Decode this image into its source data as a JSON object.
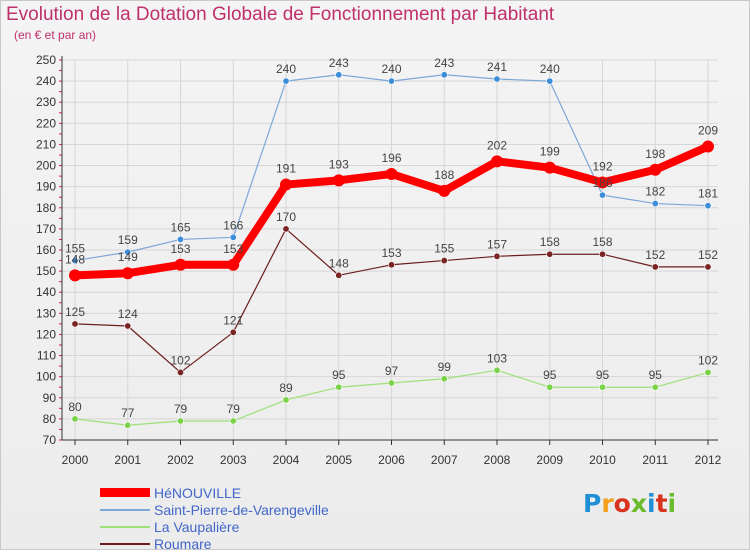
{
  "header": {
    "title": "Evolution de la Dotation Globale de Fonctionnement par Habitant",
    "subtitle": "(en € et par an)"
  },
  "logo": {
    "text": "Proxiti",
    "colors": [
      "#1f8fd6",
      "#f3a01c",
      "#d9331f",
      "#6cbb2c",
      "#1f8fd6",
      "#d9331f",
      "#6cbb2c"
    ]
  },
  "chart_data": {
    "type": "line",
    "title": "Evolution de la Dotation Globale de Fonctionnement par Habitant",
    "subtitle": "(en € et par an)",
    "x": [
      "2000",
      "2001",
      "2002",
      "2003",
      "2004",
      "2005",
      "2006",
      "2007",
      "2008",
      "2009",
      "2010",
      "2011",
      "2012"
    ],
    "ylim": [
      70,
      250
    ],
    "yticks": [
      70,
      80,
      90,
      100,
      110,
      120,
      130,
      140,
      150,
      160,
      170,
      180,
      190,
      200,
      210,
      220,
      230,
      240,
      250
    ],
    "grid": true,
    "legend_position": "bottom-left",
    "series": [
      {
        "name": "Roumare",
        "color": "#6b1d1d",
        "point_color": "#7a2424",
        "width": 1.2,
        "values": [
          125,
          124,
          102,
          121,
          170,
          148,
          153,
          155,
          157,
          158,
          158,
          152,
          152
        ]
      },
      {
        "name": "La Vaupalière",
        "color": "#9ee07a",
        "point_color": "#7bd148",
        "width": 1.2,
        "values": [
          80,
          77,
          79,
          79,
          89,
          95,
          97,
          99,
          103,
          95,
          95,
          95,
          102
        ]
      },
      {
        "name": "Saint-Pierre-de-Varengeville",
        "color": "#7ea7d9",
        "point_color": "#3d8ed9",
        "width": 1.2,
        "values": [
          155,
          159,
          165,
          166,
          240,
          243,
          240,
          243,
          241,
          240,
          186,
          182,
          181
        ]
      },
      {
        "name": "HéNOUVILLE",
        "color": "#ff0000",
        "point_color": "#ff0000",
        "width": 8,
        "values": [
          148,
          149,
          153,
          153,
          191,
          193,
          196,
          188,
          202,
          199,
          192,
          198,
          209
        ]
      }
    ],
    "legend_order": [
      "HéNOUVILLE",
      "Saint-Pierre-de-Varengeville",
      "La Vaupalière",
      "Roumare"
    ]
  }
}
